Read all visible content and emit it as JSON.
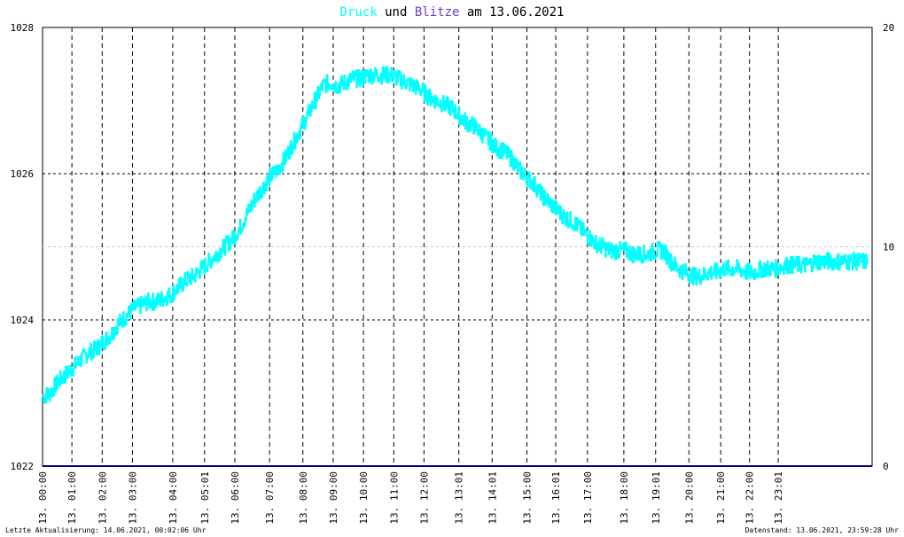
{
  "colors": {
    "pressure": "#00FFFF",
    "lightning": "#6B3FD0",
    "baseline": "#000080",
    "grid": "#000000",
    "text": "#000000"
  },
  "title": {
    "druck": "Druck",
    "und": "und",
    "blitze": "Blitze",
    "rest": "am 13.06.2021"
  },
  "footer": {
    "left": "Letzte Aktualisierung: 14.06.2021, 00:02:06 Uhr",
    "right": "Datenstand: 13.06.2021, 23:59:28 Uhr"
  },
  "chart_data": {
    "type": "line",
    "y_left": {
      "min": 1022,
      "max": 1028,
      "ticks": [
        "1028",
        "1026",
        "1024",
        "1022"
      ]
    },
    "y_right": {
      "min": 0,
      "max": 20,
      "ticks": [
        "20",
        "10",
        "0"
      ]
    },
    "x_labels": [
      "13. 00:00",
      "13. 01:00",
      "13. 02:00",
      "13. 03:00",
      "13. 04:00",
      "13. 05:01",
      "13. 06:00",
      "13. 07:00",
      "13. 08:00",
      "13. 09:00",
      "13. 10:00",
      "13. 11:00",
      "13. 12:00",
      "13. 13:01",
      "13. 14:01",
      "13. 15:00",
      "13. 16:01",
      "13. 17:00",
      "13. 18:00",
      "13. 19:01",
      "13. 20:00",
      "13. 21:00",
      "13. 22:00",
      "13. 23:01"
    ],
    "x_label_hours": [
      0.0,
      0.97,
      1.97,
      2.97,
      4.3,
      5.35,
      6.35,
      7.5,
      8.6,
      9.6,
      10.6,
      11.6,
      12.6,
      13.75,
      14.85,
      16.0,
      16.95,
      18.0,
      19.2,
      20.25,
      21.35,
      22.4,
      23.35,
      24.3
    ],
    "x_range_hours": [
      0,
      27.4
    ],
    "series": [
      {
        "name": "Druck",
        "x_hours": [
          0.0,
          0.25,
          0.5,
          0.75,
          1.0,
          1.25,
          1.5,
          1.75,
          2.0,
          2.25,
          2.5,
          2.75,
          3.0,
          3.25,
          3.5,
          3.75,
          4.0,
          4.25,
          4.5,
          4.75,
          5.0,
          5.25,
          5.5,
          5.75,
          6.0,
          6.25,
          6.5,
          6.75,
          7.0,
          7.25,
          7.5,
          7.75,
          8.0,
          8.25,
          8.5,
          8.75,
          9.0,
          9.25,
          9.5,
          9.75,
          10.0,
          10.25,
          10.5,
          10.75,
          11.0,
          11.25,
          11.5,
          11.75,
          12.0,
          12.25,
          12.5,
          12.75,
          13.0,
          13.25,
          13.5,
          13.75,
          14.0,
          14.25,
          14.5,
          14.75,
          15.0,
          15.25,
          15.5,
          15.75,
          16.0,
          16.25,
          16.5,
          16.75,
          17.0,
          17.25,
          17.5,
          17.75,
          18.0,
          18.25,
          18.5,
          18.75,
          19.0,
          19.25,
          19.5,
          19.75,
          20.0,
          20.25,
          20.5,
          20.75,
          21.0,
          21.25,
          21.5,
          21.75,
          22.0,
          22.25,
          22.5,
          22.75,
          23.0,
          23.25,
          23.5,
          23.75,
          24.0,
          24.25,
          24.5,
          24.75,
          25.0,
          25.25,
          25.5,
          25.75,
          26.0,
          26.25,
          26.5,
          26.75,
          27.0,
          27.25
        ],
        "values": [
          1022.95,
          1023.0,
          1023.15,
          1023.25,
          1023.35,
          1023.45,
          1023.55,
          1023.6,
          1023.7,
          1023.8,
          1023.95,
          1024.05,
          1024.15,
          1024.2,
          1024.25,
          1024.25,
          1024.3,
          1024.35,
          1024.45,
          1024.55,
          1024.6,
          1024.7,
          1024.8,
          1024.9,
          1025.0,
          1025.1,
          1025.25,
          1025.45,
          1025.65,
          1025.8,
          1025.95,
          1026.05,
          1026.2,
          1026.4,
          1026.6,
          1026.8,
          1027.0,
          1027.2,
          1027.25,
          1027.2,
          1027.25,
          1027.3,
          1027.3,
          1027.35,
          1027.35,
          1027.35,
          1027.35,
          1027.3,
          1027.25,
          1027.2,
          1027.15,
          1027.05,
          1027.0,
          1026.95,
          1026.9,
          1026.8,
          1026.7,
          1026.65,
          1026.55,
          1026.45,
          1026.35,
          1026.3,
          1026.2,
          1026.05,
          1025.95,
          1025.85,
          1025.7,
          1025.6,
          1025.5,
          1025.4,
          1025.35,
          1025.25,
          1025.15,
          1025.05,
          1025.0,
          1024.95,
          1024.95,
          1024.95,
          1024.9,
          1024.9,
          1024.9,
          1024.95,
          1024.95,
          1024.8,
          1024.7,
          1024.65,
          1024.6,
          1024.6,
          1024.65,
          1024.65,
          1024.7,
          1024.7,
          1024.7,
          1024.65,
          1024.65,
          1024.7,
          1024.7,
          1024.7,
          1024.75,
          1024.75,
          1024.75,
          1024.75,
          1024.8,
          1024.8,
          1024.8,
          1024.8,
          1024.8,
          1024.8,
          1024.8,
          1024.8
        ],
        "jitter": 0.12
      },
      {
        "name": "Blitze",
        "values_constant": 0
      }
    ]
  }
}
